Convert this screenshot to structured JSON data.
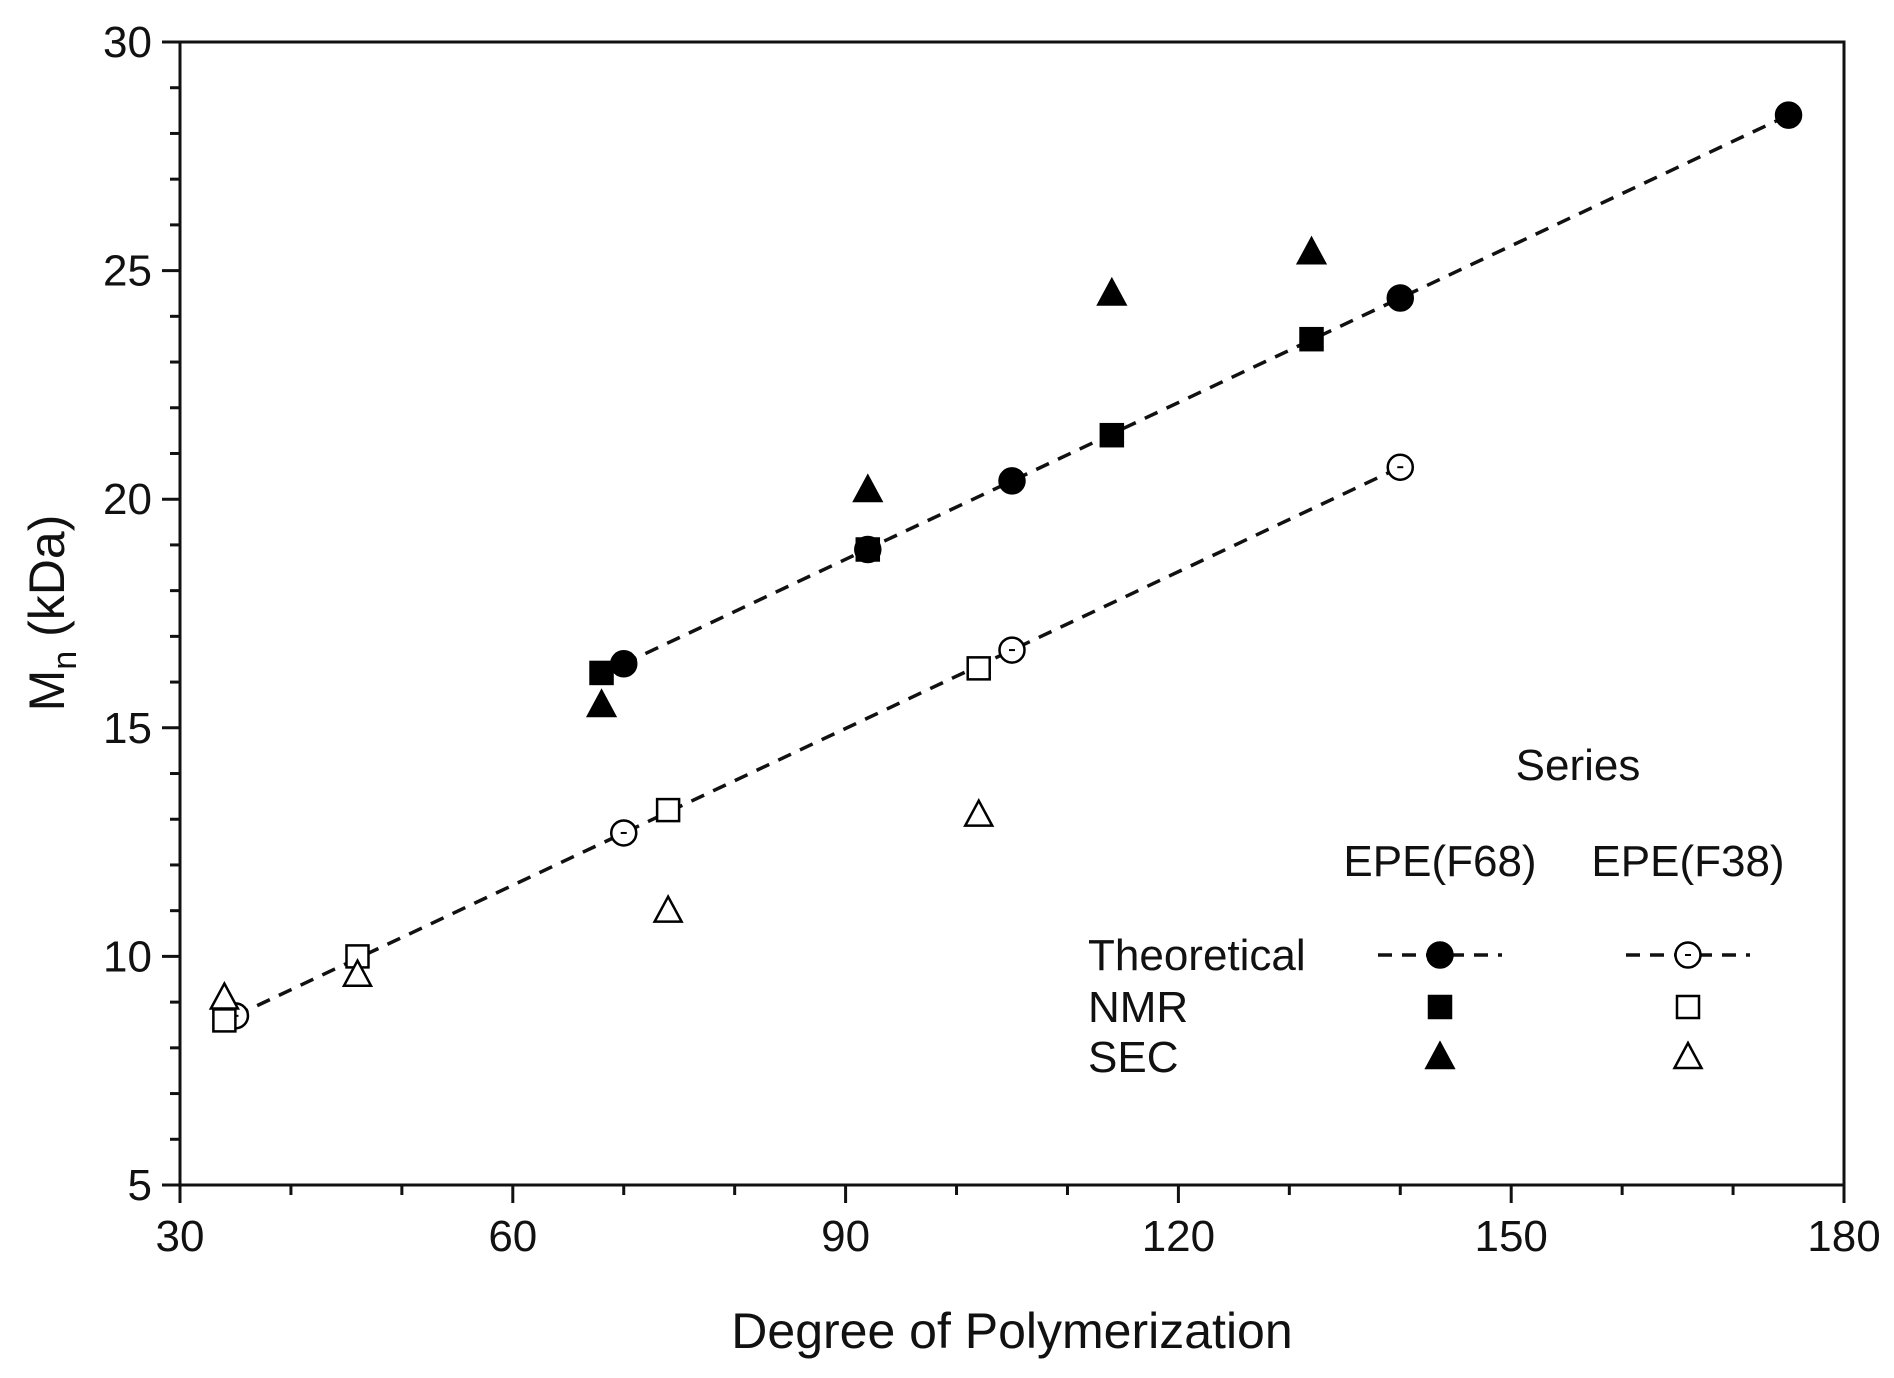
{
  "chart_data": {
    "type": "scatter",
    "title": "",
    "xlabel": "Degree of Polymerization",
    "ylabel_main": "M",
    "ylabel_sub": "n",
    "ylabel_unit": " (kDa)",
    "xlim": [
      30,
      180
    ],
    "ylim": [
      5,
      30
    ],
    "xticks": [
      30,
      60,
      90,
      120,
      150,
      180
    ],
    "yticks": [
      5,
      10,
      15,
      20,
      25,
      30
    ],
    "x_minor_step": 10,
    "y_minor_step": 1,
    "grid": false,
    "series": [
      {
        "name": "EPE(F68) Theoretical",
        "marker": "circle",
        "filled": true,
        "line": "dashed",
        "x": [
          70,
          92,
          105,
          140,
          175
        ],
        "y": [
          16.4,
          18.9,
          20.4,
          24.4,
          28.4
        ]
      },
      {
        "name": "EPE(F68) NMR",
        "marker": "square",
        "filled": true,
        "line": "none",
        "x": [
          68,
          92,
          114,
          132
        ],
        "y": [
          16.2,
          18.9,
          21.4,
          23.5
        ]
      },
      {
        "name": "EPE(F68) SEC",
        "marker": "triangle",
        "filled": true,
        "line": "none",
        "x": [
          68,
          92,
          114,
          132
        ],
        "y": [
          15.5,
          20.2,
          24.5,
          25.4
        ]
      },
      {
        "name": "EPE(F38) Theoretical",
        "marker": "circle",
        "filled": false,
        "line": "dashed",
        "x": [
          35,
          70,
          105,
          140
        ],
        "y": [
          8.7,
          12.7,
          16.7,
          20.7
        ]
      },
      {
        "name": "EPE(F38) NMR",
        "marker": "square",
        "filled": false,
        "line": "none",
        "x": [
          34,
          46,
          74,
          102
        ],
        "y": [
          8.6,
          10.0,
          13.2,
          16.3
        ]
      },
      {
        "name": "EPE(F38) SEC",
        "marker": "triangle",
        "filled": false,
        "line": "none",
        "x": [
          34,
          46,
          74,
          102
        ],
        "y": [
          9.1,
          9.6,
          11.0,
          13.1
        ]
      }
    ],
    "legend": {
      "placement": "bottom-right",
      "title": "Series",
      "columns": [
        "EPE(F68)",
        "EPE(F38)"
      ],
      "rows": [
        "Theoretical",
        "NMR",
        "SEC"
      ]
    }
  }
}
